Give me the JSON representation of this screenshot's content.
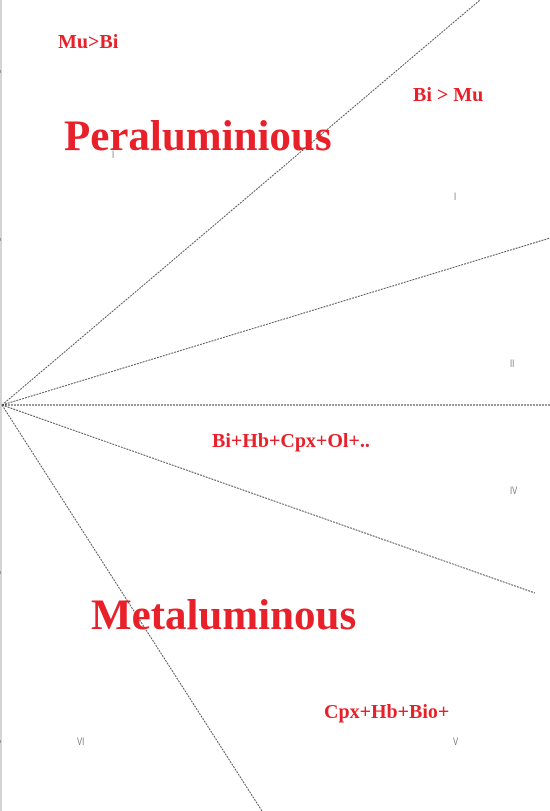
{
  "colors": {
    "text": "#e8202a",
    "lines": "#555555",
    "axis": "#aaaaaa"
  },
  "fields": [
    {
      "id": "mu-gt-bi",
      "text": "Mu>Bi"
    },
    {
      "id": "bi-gt-mu",
      "text": "Bi > Mu"
    },
    {
      "id": "peraluminious",
      "text": "Peraluminious"
    },
    {
      "id": "bi-hb-cpx-ol",
      "text": "Bi+Hb+Cpx+Ol+.."
    },
    {
      "id": "metaluminous",
      "text": "Metaluminous"
    },
    {
      "id": "cpx-hb-bio",
      "text": "Cpx+Hb+Bio+"
    }
  ],
  "sector_numerals": [
    "I",
    "I",
    "II",
    "IV",
    "V",
    "VI"
  ]
}
